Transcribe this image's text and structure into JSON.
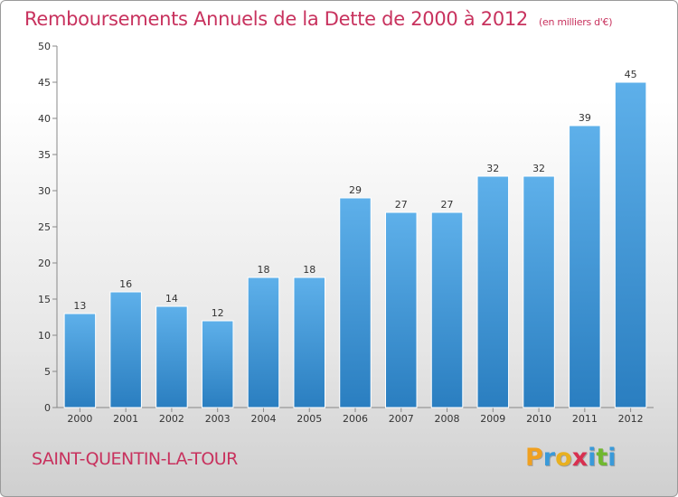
{
  "title": "Remboursements Annuels de la Dette de 2000 à 2012",
  "subtitle": "(en milliers d'€)",
  "commune": "SAINT-QUENTIN-LA-TOUR",
  "logo": {
    "letters": [
      "P",
      "r",
      "o",
      "x",
      "i",
      "t",
      "i"
    ],
    "colors": [
      "#f0a020",
      "#3a9ad9",
      "#e8b020",
      "#d83050",
      "#3a9ad9",
      "#70b830",
      "#3a9ad9"
    ]
  },
  "colors": {
    "bar_top": "#5eb0ea",
    "bar_bottom": "#2a7ec0",
    "title": "#c8325e"
  },
  "chart_data": {
    "type": "bar",
    "categories": [
      "2000",
      "2001",
      "2002",
      "2003",
      "2004",
      "2005",
      "2006",
      "2007",
      "2008",
      "2009",
      "2010",
      "2011",
      "2012"
    ],
    "values": [
      13,
      16,
      14,
      12,
      18,
      18,
      29,
      27,
      27,
      32,
      32,
      39,
      45
    ],
    "yticks": [
      "0",
      "5",
      "10",
      "15",
      "20",
      "25",
      "30",
      "35",
      "40",
      "45",
      "50"
    ],
    "ylim": [
      0,
      50
    ],
    "grid": false,
    "legend": "none"
  }
}
